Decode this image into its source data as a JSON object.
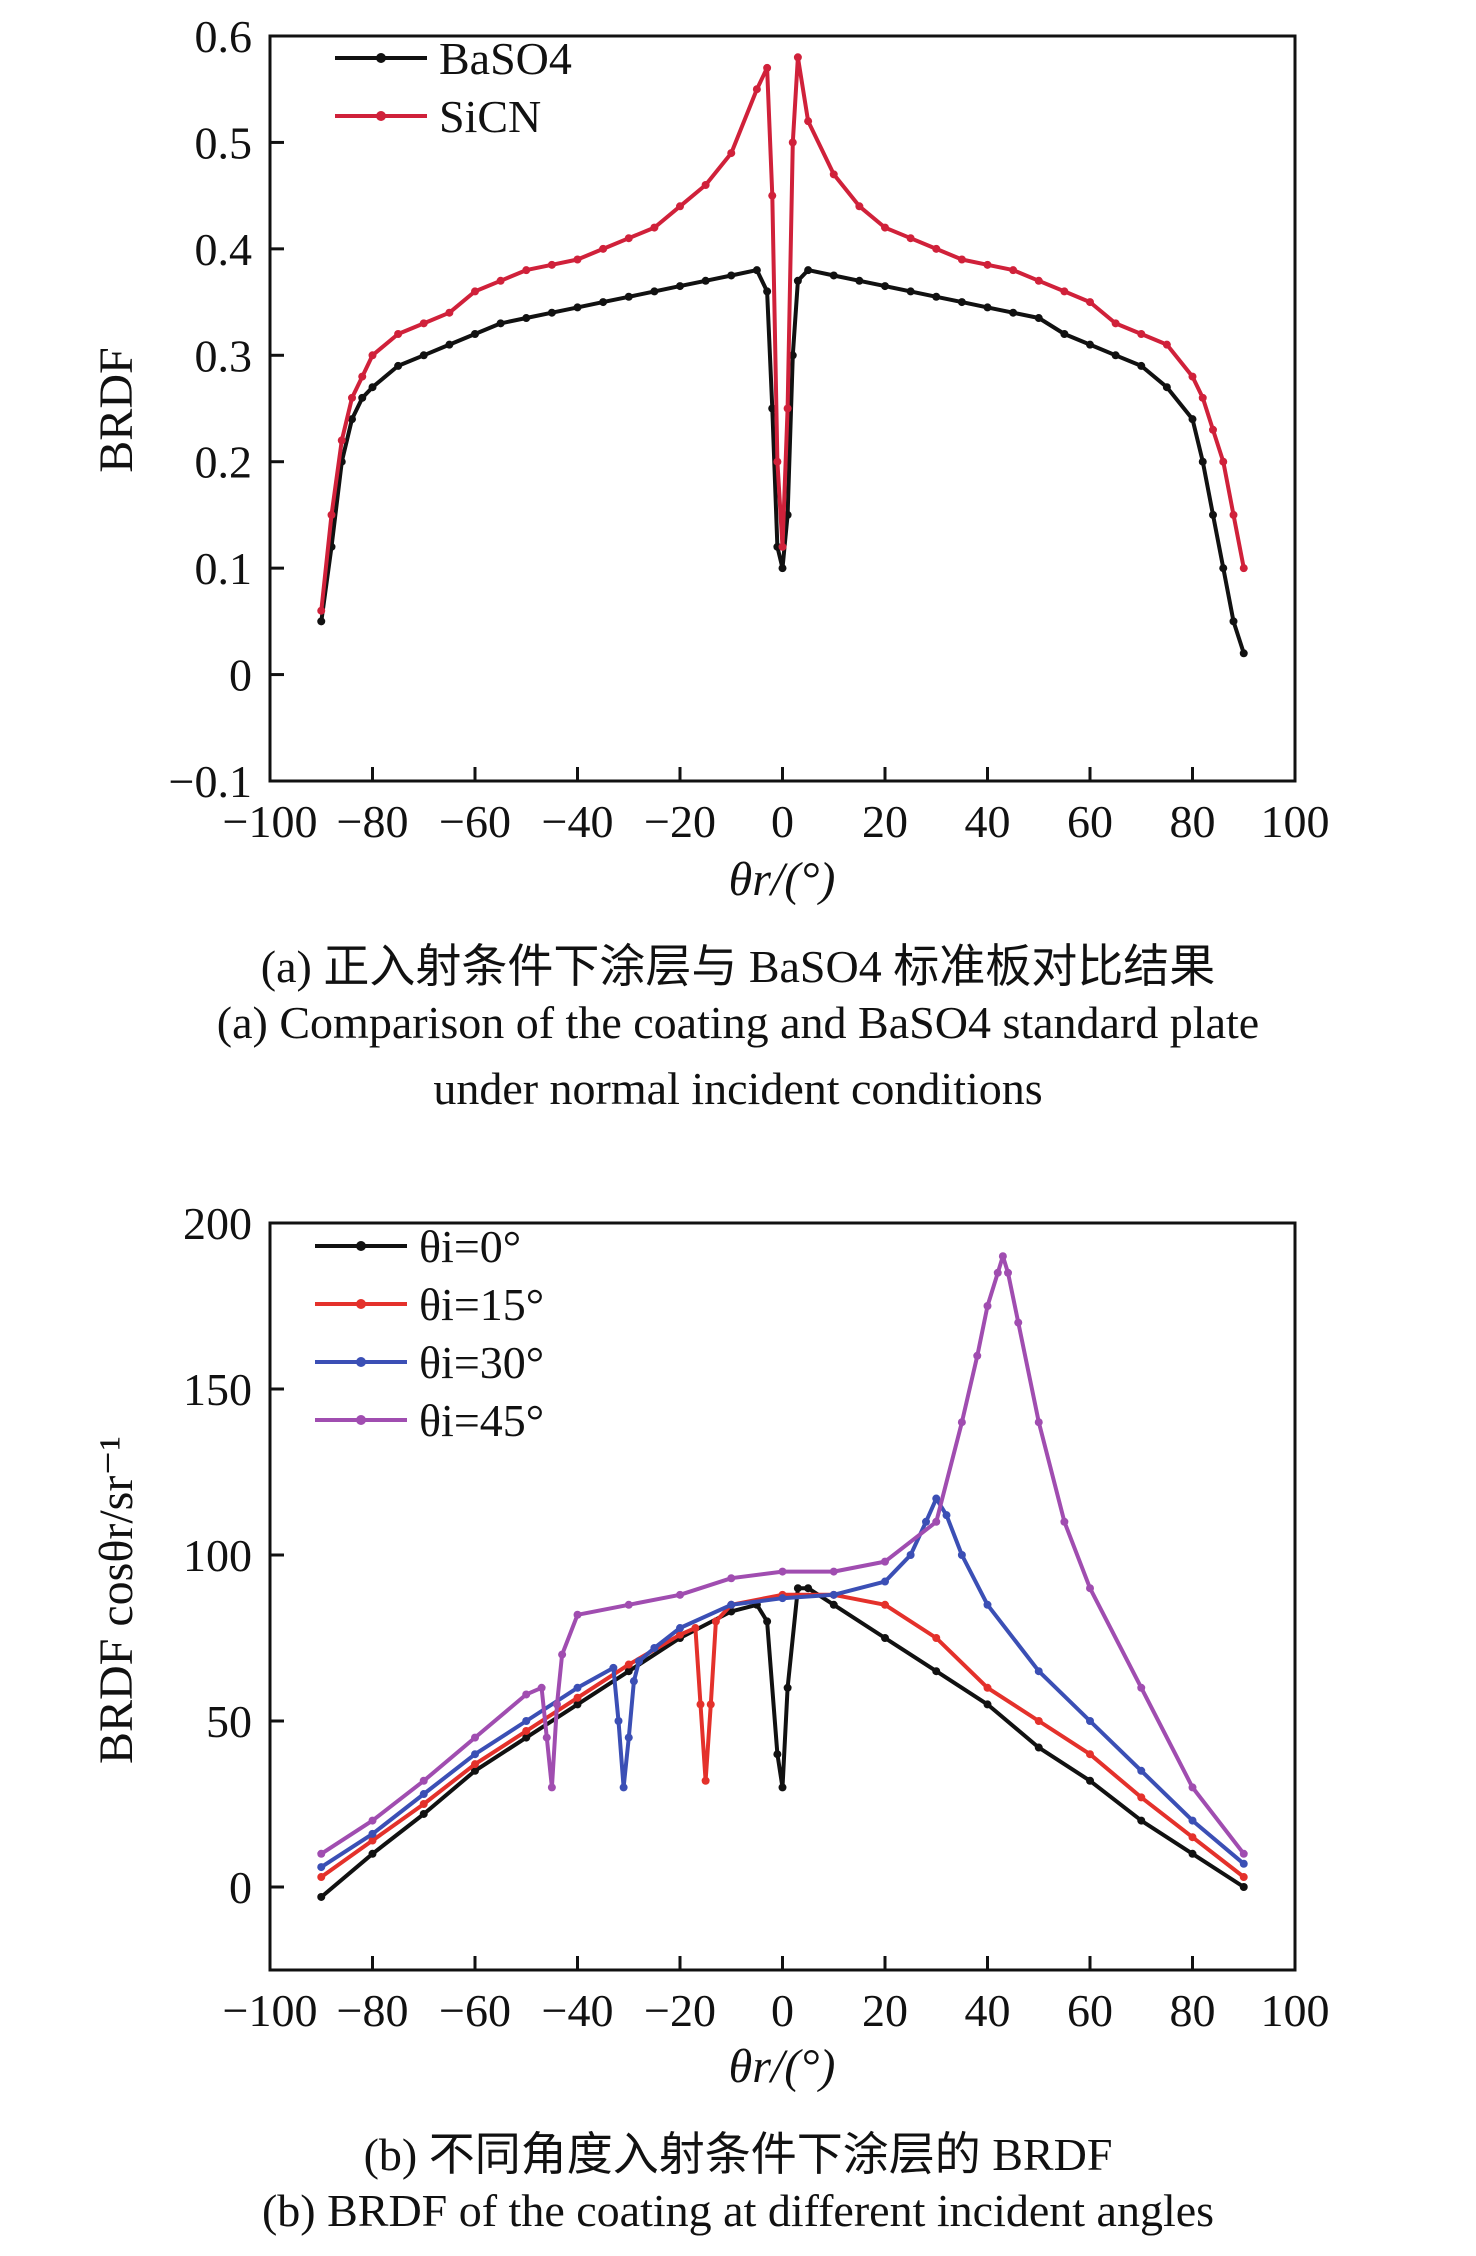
{
  "chart_data": [
    {
      "type": "line",
      "xlabel": "θr/(°)",
      "ylabel": "BRDF",
      "xlim": [
        -100,
        100
      ],
      "ylim": [
        -0.1,
        0.6
      ],
      "xticks": [
        "−100",
        "−80",
        "−60",
        "−40",
        "−20",
        "0",
        "20",
        "40",
        "60",
        "80",
        "100"
      ],
      "yticks": [
        "−0.1",
        "0",
        "0.1",
        "0.2",
        "0.3",
        "0.4",
        "0.5",
        "0.6"
      ],
      "legend_position": "top-left",
      "grid": false,
      "caption_cn": "(a) 正入射条件下涂层与 BaSO4 标准板对比结果",
      "caption_en_1": "(a) Comparison of the coating and BaSO4 standard plate",
      "caption_en_2": "under normal incident conditions",
      "series": [
        {
          "name": "BaSO4",
          "color": "#111111",
          "x": [
            -90,
            -88,
            -86,
            -84,
            -82,
            -80,
            -75,
            -70,
            -65,
            -60,
            -55,
            -50,
            -45,
            -40,
            -35,
            -30,
            -25,
            -20,
            -15,
            -10,
            -5,
            -3,
            -2,
            -1,
            0,
            1,
            2,
            3,
            5,
            10,
            15,
            20,
            25,
            30,
            35,
            40,
            45,
            50,
            55,
            60,
            65,
            70,
            75,
            80,
            82,
            84,
            86,
            88,
            90
          ],
          "y": [
            0.05,
            0.12,
            0.2,
            0.24,
            0.26,
            0.27,
            0.29,
            0.3,
            0.31,
            0.32,
            0.33,
            0.335,
            0.34,
            0.345,
            0.35,
            0.355,
            0.36,
            0.365,
            0.37,
            0.375,
            0.38,
            0.36,
            0.25,
            0.12,
            0.1,
            0.15,
            0.3,
            0.37,
            0.38,
            0.375,
            0.37,
            0.365,
            0.36,
            0.355,
            0.35,
            0.345,
            0.34,
            0.335,
            0.32,
            0.31,
            0.3,
            0.29,
            0.27,
            0.24,
            0.2,
            0.15,
            0.1,
            0.05,
            0.02
          ]
        },
        {
          "name": "SiCN",
          "color": "#d0213a",
          "x": [
            -90,
            -88,
            -86,
            -84,
            -82,
            -80,
            -75,
            -70,
            -65,
            -60,
            -55,
            -50,
            -45,
            -40,
            -35,
            -30,
            -25,
            -20,
            -15,
            -10,
            -5,
            -3,
            -2,
            -1,
            0,
            1,
            2,
            3,
            5,
            10,
            15,
            20,
            25,
            30,
            35,
            40,
            45,
            50,
            55,
            60,
            65,
            70,
            75,
            80,
            82,
            84,
            86,
            88,
            90
          ],
          "y": [
            0.06,
            0.15,
            0.22,
            0.26,
            0.28,
            0.3,
            0.32,
            0.33,
            0.34,
            0.36,
            0.37,
            0.38,
            0.385,
            0.39,
            0.4,
            0.41,
            0.42,
            0.44,
            0.46,
            0.49,
            0.55,
            0.57,
            0.45,
            0.2,
            0.12,
            0.25,
            0.5,
            0.58,
            0.52,
            0.47,
            0.44,
            0.42,
            0.41,
            0.4,
            0.39,
            0.385,
            0.38,
            0.37,
            0.36,
            0.35,
            0.33,
            0.32,
            0.31,
            0.28,
            0.26,
            0.23,
            0.2,
            0.15,
            0.1
          ]
        }
      ]
    },
    {
      "type": "line",
      "xlabel": "θr/(°)",
      "ylabel": "BRDF cosθr/sr⁻¹",
      "xlim": [
        -100,
        100
      ],
      "ylim": [
        -25,
        200
      ],
      "xticks": [
        "−100",
        "−80",
        "−60",
        "−40",
        "−20",
        "0",
        "20",
        "40",
        "60",
        "80",
        "100"
      ],
      "yticks": [
        "0",
        "50",
        "100",
        "150",
        "200"
      ],
      "legend_position": "top-left",
      "grid": false,
      "caption_cn": "(b) 不同角度入射条件下涂层的 BRDF",
      "caption_en": "(b) BRDF of the coating at different incident angles",
      "series": [
        {
          "name": "θi=0°",
          "color": "#111111",
          "x": [
            -90,
            -80,
            -70,
            -60,
            -50,
            -40,
            -30,
            -20,
            -10,
            -5,
            -3,
            -1,
            0,
            1,
            3,
            5,
            10,
            20,
            30,
            40,
            50,
            60,
            70,
            80,
            90
          ],
          "y": [
            -3,
            10,
            22,
            35,
            45,
            55,
            65,
            75,
            83,
            85,
            80,
            40,
            30,
            60,
            90,
            90,
            85,
            75,
            65,
            55,
            42,
            32,
            20,
            10,
            0
          ]
        },
        {
          "name": "θi=15°",
          "color": "#e4312b",
          "x": [
            -90,
            -80,
            -70,
            -60,
            -50,
            -40,
            -30,
            -20,
            -17,
            -16,
            -15,
            -14,
            -13,
            -10,
            0,
            10,
            20,
            30,
            40,
            50,
            60,
            70,
            80,
            90
          ],
          "y": [
            3,
            14,
            25,
            37,
            47,
            57,
            67,
            76,
            78,
            55,
            32,
            55,
            80,
            85,
            88,
            88,
            85,
            75,
            60,
            50,
            40,
            27,
            15,
            3
          ]
        },
        {
          "name": "θi=30°",
          "color": "#3b4fb5",
          "x": [
            -90,
            -80,
            -70,
            -60,
            -50,
            -40,
            -33,
            -32,
            -31,
            -30,
            -29,
            -28,
            -25,
            -20,
            -10,
            0,
            10,
            20,
            25,
            28,
            30,
            32,
            35,
            40,
            50,
            60,
            70,
            80,
            90
          ],
          "y": [
            6,
            16,
            28,
            40,
            50,
            60,
            66,
            50,
            30,
            45,
            62,
            68,
            72,
            78,
            85,
            87,
            88,
            92,
            100,
            110,
            117,
            112,
            100,
            85,
            65,
            50,
            35,
            20,
            7
          ]
        },
        {
          "name": "θi=45°",
          "color": "#a04db0",
          "x": [
            -90,
            -80,
            -70,
            -60,
            -50,
            -47,
            -46,
            -45,
            -44,
            -43,
            -40,
            -30,
            -20,
            -10,
            0,
            10,
            20,
            30,
            35,
            38,
            40,
            42,
            43,
            44,
            46,
            50,
            55,
            60,
            70,
            80,
            90
          ],
          "y": [
            10,
            20,
            32,
            45,
            58,
            60,
            45,
            30,
            55,
            70,
            82,
            85,
            88,
            93,
            95,
            95,
            98,
            110,
            140,
            160,
            175,
            185,
            190,
            185,
            170,
            140,
            110,
            90,
            60,
            30,
            10
          ]
        }
      ]
    }
  ]
}
